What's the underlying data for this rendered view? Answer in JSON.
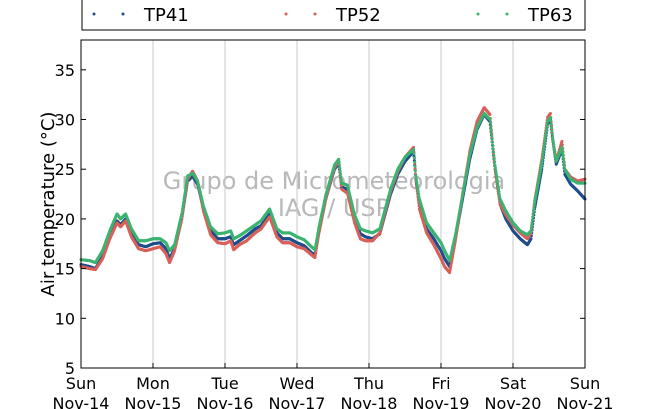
{
  "chart_data": {
    "type": "scatter",
    "ylabel": "Air temperature (°C)",
    "ylim": [
      5,
      38
    ],
    "yticks": [
      5,
      10,
      15,
      20,
      25,
      30,
      35
    ],
    "xlim_days": [
      0,
      7
    ],
    "xticks": [
      {
        "day": "Sun",
        "date": "Nov-14"
      },
      {
        "day": "Mon",
        "date": "Nov-15"
      },
      {
        "day": "Tue",
        "date": "Nov-16"
      },
      {
        "day": "Wed",
        "date": "Nov-17"
      },
      {
        "day": "Thu",
        "date": "Nov-18"
      },
      {
        "day": "Fri",
        "date": "Nov-19"
      },
      {
        "day": "Sat",
        "date": "Nov-20"
      },
      {
        "day": "Sun",
        "date": "Nov-21"
      }
    ],
    "grid": "vertical",
    "legend_position": "top",
    "watermark": [
      "Grupo de Micrometeorologia",
      "IAG / USP"
    ],
    "series": [
      {
        "name": "TP41",
        "color": "#1f4e8c",
        "points": [
          [
            0.0,
            15.4
          ],
          [
            0.12,
            15.2
          ],
          [
            0.2,
            15.0
          ],
          [
            0.3,
            16.2
          ],
          [
            0.4,
            18.3
          ],
          [
            0.5,
            19.8
          ],
          [
            0.55,
            19.4
          ],
          [
            0.62,
            20.0
          ],
          [
            0.7,
            18.5
          ],
          [
            0.8,
            17.4
          ],
          [
            0.9,
            17.2
          ],
          [
            1.0,
            17.5
          ],
          [
            1.1,
            17.6
          ],
          [
            1.18,
            17.0
          ],
          [
            1.23,
            16.0
          ],
          [
            1.3,
            17.0
          ],
          [
            1.4,
            20.0
          ],
          [
            1.48,
            23.8
          ],
          [
            1.55,
            24.3
          ],
          [
            1.62,
            23.5
          ],
          [
            1.7,
            21.0
          ],
          [
            1.8,
            18.8
          ],
          [
            1.9,
            18.0
          ],
          [
            2.0,
            18.0
          ],
          [
            2.08,
            18.2
          ],
          [
            2.12,
            17.4
          ],
          [
            2.2,
            17.8
          ],
          [
            2.3,
            18.3
          ],
          [
            2.42,
            19.0
          ],
          [
            2.5,
            19.3
          ],
          [
            2.62,
            20.5
          ],
          [
            2.72,
            18.6
          ],
          [
            2.8,
            18.0
          ],
          [
            2.9,
            18.0
          ],
          [
            3.0,
            17.6
          ],
          [
            3.1,
            17.3
          ],
          [
            3.2,
            16.6
          ],
          [
            3.25,
            16.4
          ],
          [
            3.3,
            18.5
          ],
          [
            3.4,
            22.0
          ],
          [
            3.52,
            25.0
          ],
          [
            3.58,
            25.6
          ],
          [
            3.62,
            23.2
          ],
          [
            3.7,
            23.0
          ],
          [
            3.8,
            20.0
          ],
          [
            3.88,
            18.5
          ],
          [
            3.95,
            18.2
          ],
          [
            4.05,
            18.0
          ],
          [
            4.15,
            18.5
          ],
          [
            4.3,
            22.5
          ],
          [
            4.4,
            24.5
          ],
          [
            4.5,
            25.8
          ],
          [
            4.62,
            26.8
          ],
          [
            4.65,
            24.0
          ],
          [
            4.7,
            21.5
          ],
          [
            4.8,
            19.0
          ],
          [
            4.9,
            18.0
          ],
          [
            5.0,
            16.8
          ],
          [
            5.05,
            16.0
          ],
          [
            5.12,
            15.2
          ],
          [
            5.2,
            18.0
          ],
          [
            5.3,
            22.0
          ],
          [
            5.4,
            26.0
          ],
          [
            5.5,
            29.0
          ],
          [
            5.6,
            30.5
          ],
          [
            5.68,
            29.8
          ],
          [
            5.75,
            25.0
          ],
          [
            5.82,
            21.5
          ],
          [
            5.9,
            20.0
          ],
          [
            6.0,
            18.8
          ],
          [
            6.1,
            18.0
          ],
          [
            6.2,
            17.4
          ],
          [
            6.25,
            18.0
          ],
          [
            6.3,
            21.0
          ],
          [
            6.4,
            25.0
          ],
          [
            6.48,
            29.5
          ],
          [
            6.52,
            30.0
          ],
          [
            6.55,
            28.0
          ],
          [
            6.6,
            25.5
          ],
          [
            6.68,
            27.0
          ],
          [
            6.72,
            24.5
          ],
          [
            6.8,
            23.5
          ],
          [
            6.9,
            22.8
          ],
          [
            7.0,
            22.0
          ]
        ]
      },
      {
        "name": "TP52",
        "color": "#d9605a",
        "points": [
          [
            0.0,
            15.2
          ],
          [
            0.12,
            15.0
          ],
          [
            0.2,
            14.9
          ],
          [
            0.3,
            16.0
          ],
          [
            0.4,
            18.0
          ],
          [
            0.5,
            19.6
          ],
          [
            0.55,
            19.2
          ],
          [
            0.62,
            19.8
          ],
          [
            0.7,
            18.2
          ],
          [
            0.8,
            17.0
          ],
          [
            0.9,
            16.8
          ],
          [
            1.0,
            17.0
          ],
          [
            1.1,
            17.2
          ],
          [
            1.18,
            16.5
          ],
          [
            1.23,
            15.6
          ],
          [
            1.3,
            16.8
          ],
          [
            1.4,
            20.0
          ],
          [
            1.48,
            24.0
          ],
          [
            1.55,
            24.8
          ],
          [
            1.62,
            23.8
          ],
          [
            1.7,
            20.8
          ],
          [
            1.8,
            18.4
          ],
          [
            1.9,
            17.6
          ],
          [
            2.0,
            17.5
          ],
          [
            2.08,
            17.8
          ],
          [
            2.12,
            16.9
          ],
          [
            2.2,
            17.4
          ],
          [
            2.3,
            17.8
          ],
          [
            2.42,
            18.6
          ],
          [
            2.5,
            19.0
          ],
          [
            2.62,
            20.2
          ],
          [
            2.72,
            18.2
          ],
          [
            2.8,
            17.6
          ],
          [
            2.9,
            17.6
          ],
          [
            3.0,
            17.2
          ],
          [
            3.1,
            17.0
          ],
          [
            3.2,
            16.4
          ],
          [
            3.25,
            16.1
          ],
          [
            3.3,
            18.4
          ],
          [
            3.4,
            22.0
          ],
          [
            3.52,
            25.2
          ],
          [
            3.58,
            25.8
          ],
          [
            3.62,
            23.0
          ],
          [
            3.7,
            22.6
          ],
          [
            3.8,
            19.6
          ],
          [
            3.88,
            18.0
          ],
          [
            3.95,
            17.8
          ],
          [
            4.05,
            17.8
          ],
          [
            4.15,
            18.6
          ],
          [
            4.3,
            22.8
          ],
          [
            4.4,
            24.8
          ],
          [
            4.5,
            26.2
          ],
          [
            4.62,
            27.2
          ],
          [
            4.65,
            24.0
          ],
          [
            4.7,
            21.0
          ],
          [
            4.8,
            18.6
          ],
          [
            4.9,
            17.4
          ],
          [
            5.0,
            16.0
          ],
          [
            5.05,
            15.2
          ],
          [
            5.12,
            14.6
          ],
          [
            5.2,
            17.8
          ],
          [
            5.3,
            22.5
          ],
          [
            5.4,
            26.8
          ],
          [
            5.5,
            29.8
          ],
          [
            5.6,
            31.2
          ],
          [
            5.68,
            30.5
          ],
          [
            5.75,
            25.0
          ],
          [
            5.82,
            21.5
          ],
          [
            5.9,
            20.4
          ],
          [
            6.0,
            19.4
          ],
          [
            6.1,
            18.6
          ],
          [
            6.2,
            18.0
          ],
          [
            6.25,
            18.6
          ],
          [
            6.3,
            21.8
          ],
          [
            6.4,
            26.0
          ],
          [
            6.48,
            30.2
          ],
          [
            6.52,
            30.6
          ],
          [
            6.55,
            28.2
          ],
          [
            6.6,
            25.8
          ],
          [
            6.68,
            27.8
          ],
          [
            6.72,
            25.0
          ],
          [
            6.8,
            24.2
          ],
          [
            6.9,
            23.8
          ],
          [
            7.0,
            24.0
          ]
        ]
      },
      {
        "name": "TP63",
        "color": "#3cb371",
        "points": [
          [
            0.0,
            15.9
          ],
          [
            0.12,
            15.8
          ],
          [
            0.2,
            15.6
          ],
          [
            0.3,
            16.8
          ],
          [
            0.4,
            18.8
          ],
          [
            0.5,
            20.5
          ],
          [
            0.55,
            20.0
          ],
          [
            0.62,
            20.5
          ],
          [
            0.7,
            19.0
          ],
          [
            0.8,
            17.8
          ],
          [
            0.9,
            17.8
          ],
          [
            1.0,
            18.0
          ],
          [
            1.1,
            18.0
          ],
          [
            1.18,
            17.6
          ],
          [
            1.23,
            16.8
          ],
          [
            1.3,
            17.4
          ],
          [
            1.4,
            20.5
          ],
          [
            1.48,
            24.3
          ],
          [
            1.55,
            24.6
          ],
          [
            1.62,
            23.8
          ],
          [
            1.7,
            21.3
          ],
          [
            1.8,
            19.2
          ],
          [
            1.9,
            18.5
          ],
          [
            2.0,
            18.6
          ],
          [
            2.08,
            18.8
          ],
          [
            2.12,
            18.0
          ],
          [
            2.2,
            18.3
          ],
          [
            2.3,
            18.8
          ],
          [
            2.42,
            19.4
          ],
          [
            2.5,
            19.8
          ],
          [
            2.62,
            21.0
          ],
          [
            2.72,
            19.0
          ],
          [
            2.8,
            18.6
          ],
          [
            2.9,
            18.6
          ],
          [
            3.0,
            18.2
          ],
          [
            3.1,
            17.9
          ],
          [
            3.2,
            17.2
          ],
          [
            3.25,
            16.9
          ],
          [
            3.3,
            19.0
          ],
          [
            3.4,
            22.4
          ],
          [
            3.52,
            25.4
          ],
          [
            3.58,
            26.0
          ],
          [
            3.62,
            23.6
          ],
          [
            3.7,
            23.4
          ],
          [
            3.8,
            20.4
          ],
          [
            3.88,
            19.0
          ],
          [
            3.95,
            18.8
          ],
          [
            4.05,
            18.6
          ],
          [
            4.15,
            19.0
          ],
          [
            4.3,
            23.0
          ],
          [
            4.4,
            25.0
          ],
          [
            4.5,
            26.2
          ],
          [
            4.62,
            27.0
          ],
          [
            4.65,
            24.4
          ],
          [
            4.7,
            22.0
          ],
          [
            4.8,
            19.6
          ],
          [
            4.9,
            18.6
          ],
          [
            5.0,
            17.6
          ],
          [
            5.05,
            16.8
          ],
          [
            5.12,
            15.8
          ],
          [
            5.2,
            18.4
          ],
          [
            5.3,
            22.4
          ],
          [
            5.4,
            26.4
          ],
          [
            5.5,
            29.2
          ],
          [
            5.6,
            30.6
          ],
          [
            5.68,
            30.0
          ],
          [
            5.75,
            25.4
          ],
          [
            5.82,
            22.0
          ],
          [
            5.9,
            20.8
          ],
          [
            6.0,
            19.6
          ],
          [
            6.1,
            18.8
          ],
          [
            6.2,
            18.4
          ],
          [
            6.25,
            18.8
          ],
          [
            6.3,
            21.6
          ],
          [
            6.4,
            25.6
          ],
          [
            6.48,
            29.8
          ],
          [
            6.52,
            30.2
          ],
          [
            6.55,
            28.2
          ],
          [
            6.6,
            25.8
          ],
          [
            6.68,
            27.2
          ],
          [
            6.72,
            25.0
          ],
          [
            6.8,
            24.0
          ],
          [
            6.9,
            23.6
          ],
          [
            7.0,
            23.6
          ]
        ]
      }
    ]
  }
}
